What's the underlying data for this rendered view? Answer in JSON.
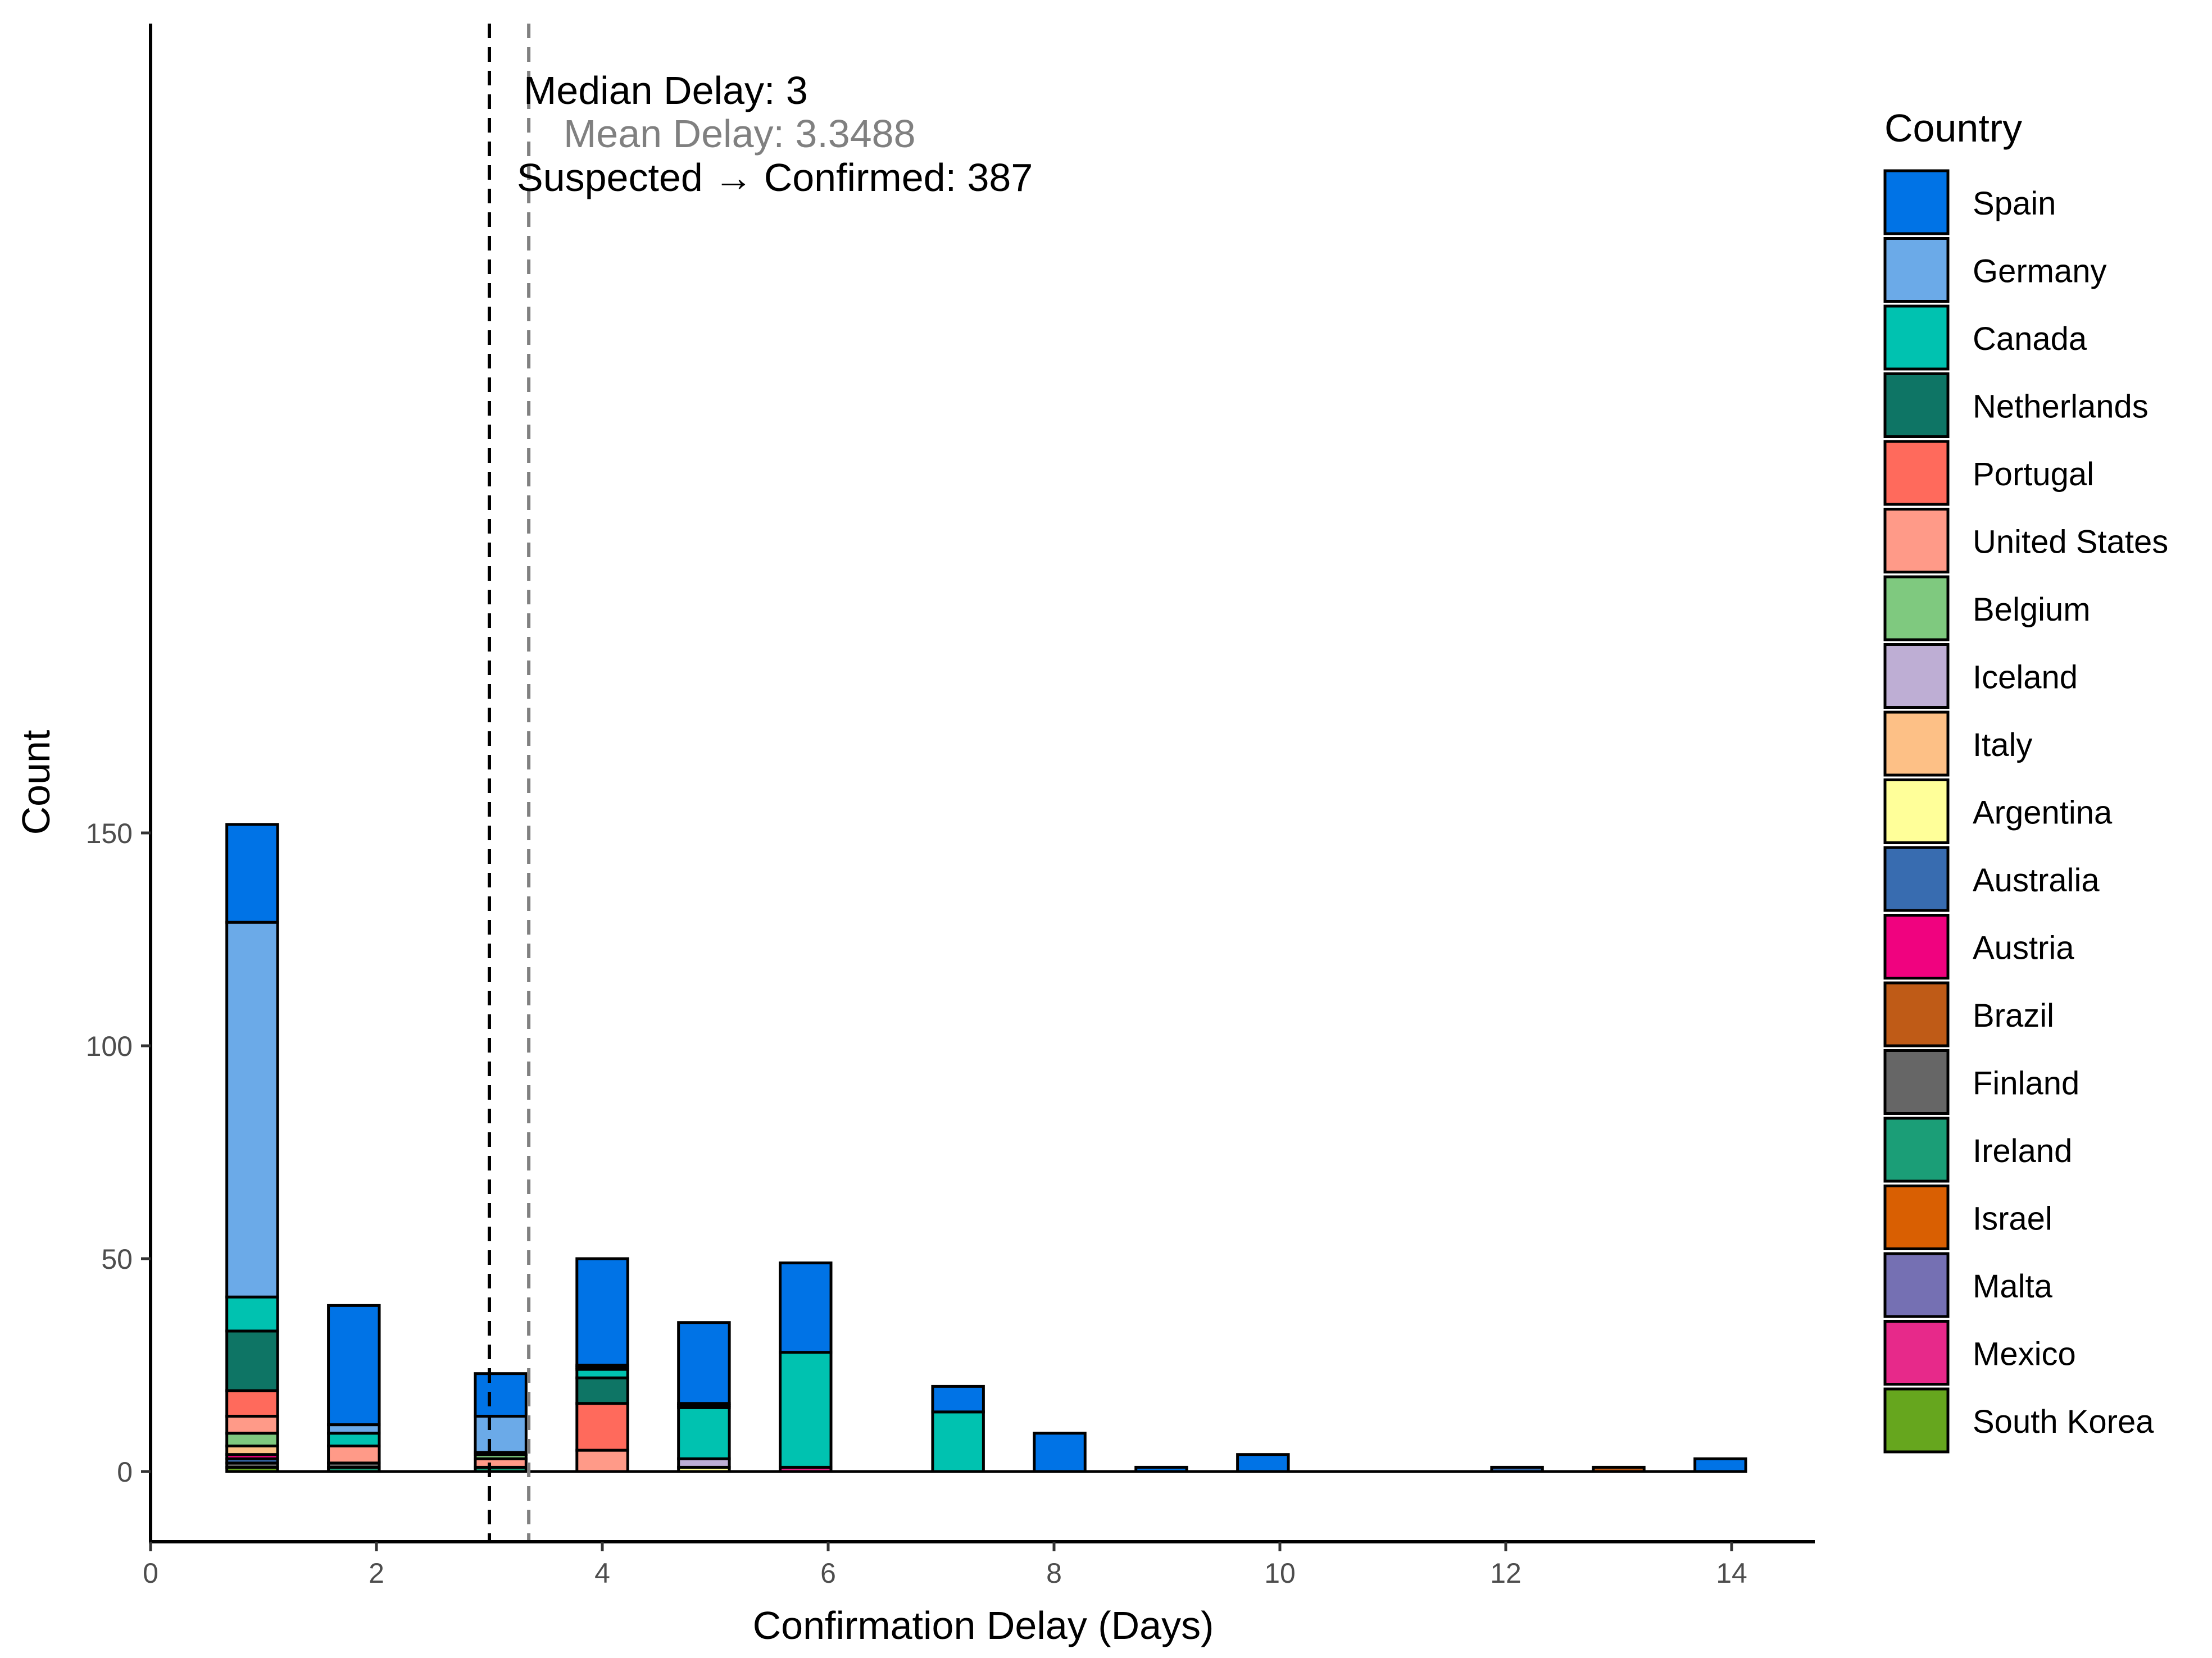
{
  "chart_data": {
    "type": "bar",
    "stacked": true,
    "xlabel": "Confirmation Delay (Days)",
    "ylabel": "Count",
    "xlim": [
      0,
      14.75
    ],
    "ylim": [
      -8,
      170
    ],
    "x_ticks": [
      0,
      2,
      4,
      6,
      8,
      10,
      12,
      14
    ],
    "y_ticks": [
      0,
      50,
      100,
      150
    ],
    "legend_title": "Country",
    "legend_position": "right",
    "grid": false,
    "countries": [
      {
        "name": "Spain",
        "color": "#0073E6"
      },
      {
        "name": "Germany",
        "color": "#6BAAE8"
      },
      {
        "name": "Canada",
        "color": "#00C2B0"
      },
      {
        "name": "Netherlands",
        "color": "#0E7565"
      },
      {
        "name": "Portugal",
        "color": "#FF6A5C"
      },
      {
        "name": "United States",
        "color": "#FF9A88"
      },
      {
        "name": "Belgium",
        "color": "#7FC97F"
      },
      {
        "name": "Iceland",
        "color": "#BEAED4"
      },
      {
        "name": "Italy",
        "color": "#FDC086"
      },
      {
        "name": "Argentina",
        "color": "#FFFF99"
      },
      {
        "name": "Australia",
        "color": "#386CB0"
      },
      {
        "name": "Austria",
        "color": "#F0027F"
      },
      {
        "name": "Brazil",
        "color": "#BF5B17"
      },
      {
        "name": "Finland",
        "color": "#666666"
      },
      {
        "name": "Ireland",
        "color": "#1B9E77"
      },
      {
        "name": "Israel",
        "color": "#D95F02"
      },
      {
        "name": "Malta",
        "color": "#7570B3"
      },
      {
        "name": "Mexico",
        "color": "#E7298A"
      },
      {
        "name": "South Korea",
        "color": "#66A61E"
      }
    ],
    "bar_width_days": 0.45,
    "bars": [
      {
        "x": 0.9,
        "stack": [
          {
            "country": "South Korea",
            "value": 1
          },
          {
            "country": "Finland",
            "value": 1
          },
          {
            "country": "Australia",
            "value": 1
          },
          {
            "country": "Austria",
            "value": 1
          },
          {
            "country": "Italy",
            "value": 2
          },
          {
            "country": "Belgium",
            "value": 3
          },
          {
            "country": "United States",
            "value": 4
          },
          {
            "country": "Portugal",
            "value": 6
          },
          {
            "country": "Netherlands",
            "value": 14
          },
          {
            "country": "Canada",
            "value": 8
          },
          {
            "country": "Germany",
            "value": 88
          },
          {
            "country": "Spain",
            "value": 23
          }
        ]
      },
      {
        "x": 1.8,
        "stack": [
          {
            "country": "Ireland",
            "value": 1
          },
          {
            "country": "Finland",
            "value": 1
          },
          {
            "country": "United States",
            "value": 4
          },
          {
            "country": "Canada",
            "value": 3
          },
          {
            "country": "Germany",
            "value": 2
          },
          {
            "country": "Spain",
            "value": 28
          }
        ]
      },
      {
        "x": 3.1,
        "stack": [
          {
            "country": "Ireland",
            "value": 1
          },
          {
            "country": "United States",
            "value": 2
          },
          {
            "country": "Belgium",
            "value": 1
          },
          {
            "country": "Canada",
            "value": 0.5
          },
          {
            "country": "Germany",
            "value": 8.5
          },
          {
            "country": "Spain",
            "value": 10
          }
        ]
      },
      {
        "x": 4.0,
        "stack": [
          {
            "country": "United States",
            "value": 5
          },
          {
            "country": "Portugal",
            "value": 11
          },
          {
            "country": "Netherlands",
            "value": 6
          },
          {
            "country": "Canada",
            "value": 2
          },
          {
            "country": "Iceland",
            "value": 0.5
          },
          {
            "country": "Germany",
            "value": 0.5
          },
          {
            "country": "Spain",
            "value": 25
          }
        ]
      },
      {
        "x": 4.9,
        "stack": [
          {
            "country": "Argentina",
            "value": 1
          },
          {
            "country": "Iceland",
            "value": 2
          },
          {
            "country": "Canada",
            "value": 12
          },
          {
            "country": "Iceland",
            "value": 0.5
          },
          {
            "country": "Germany",
            "value": 0.5
          },
          {
            "country": "Spain",
            "value": 19
          }
        ]
      },
      {
        "x": 5.8,
        "stack": [
          {
            "country": "Mexico",
            "value": 1
          },
          {
            "country": "Canada",
            "value": 27
          },
          {
            "country": "Spain",
            "value": 21
          }
        ]
      },
      {
        "x": 7.15,
        "stack": [
          {
            "country": "Canada",
            "value": 14
          },
          {
            "country": "Spain",
            "value": 6
          }
        ]
      },
      {
        "x": 8.05,
        "stack": [
          {
            "country": "Spain",
            "value": 9
          }
        ]
      },
      {
        "x": 8.95,
        "stack": [
          {
            "country": "Spain",
            "value": 1
          }
        ]
      },
      {
        "x": 9.85,
        "stack": [
          {
            "country": "Spain",
            "value": 4
          }
        ]
      },
      {
        "x": 12.1,
        "stack": [
          {
            "country": "Australia",
            "value": 1
          }
        ]
      },
      {
        "x": 13.0,
        "stack": [
          {
            "country": "Brazil",
            "value": 1
          }
        ]
      },
      {
        "x": 13.9,
        "stack": [
          {
            "country": "Spain",
            "value": 3
          }
        ]
      }
    ],
    "reference_lines": [
      {
        "name": "median",
        "x": 3,
        "color": "#000000"
      },
      {
        "name": "mean",
        "x": 3.3488,
        "color": "#808080"
      }
    ],
    "annotations": [
      {
        "text": "Median Delay: 3",
        "color": "#000000"
      },
      {
        "text": "Mean Delay: 3.3488",
        "color": "#808080"
      },
      {
        "text": "Suspected → Confirmed: 387",
        "color": "#000000"
      }
    ]
  }
}
